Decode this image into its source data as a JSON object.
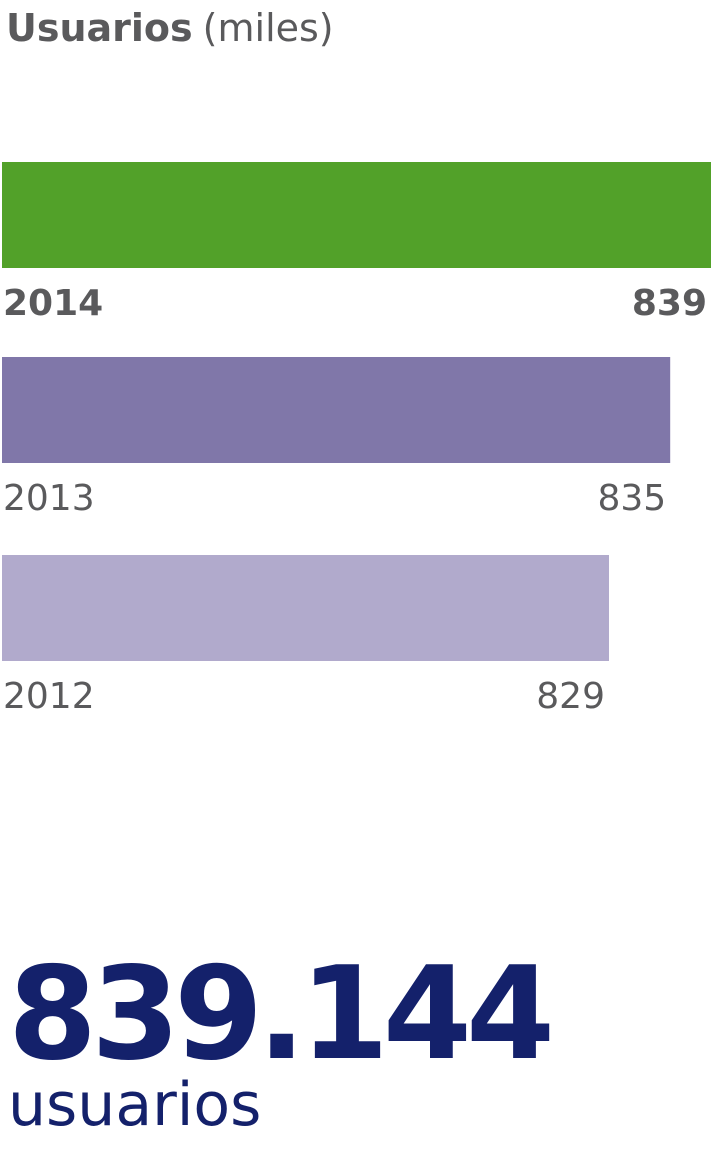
{
  "title": {
    "main": "Usuarios",
    "unit": "(miles)"
  },
  "chart_data": {
    "type": "bar",
    "orientation": "horizontal",
    "categories": [
      "2014",
      "2013",
      "2012"
    ],
    "values": [
      839,
      835,
      829
    ],
    "value_labels": [
      "839",
      "835",
      "829"
    ],
    "colors": [
      "#52a129",
      "#8077a9",
      "#b1aacc"
    ],
    "emphasized": [
      true,
      false,
      false
    ],
    "title": "Usuarios (miles)"
  },
  "highlight": {
    "value": "839.144",
    "caption": "usuarios",
    "color": "#14216b"
  },
  "colors": {
    "label_text": "#5a5a5c"
  }
}
